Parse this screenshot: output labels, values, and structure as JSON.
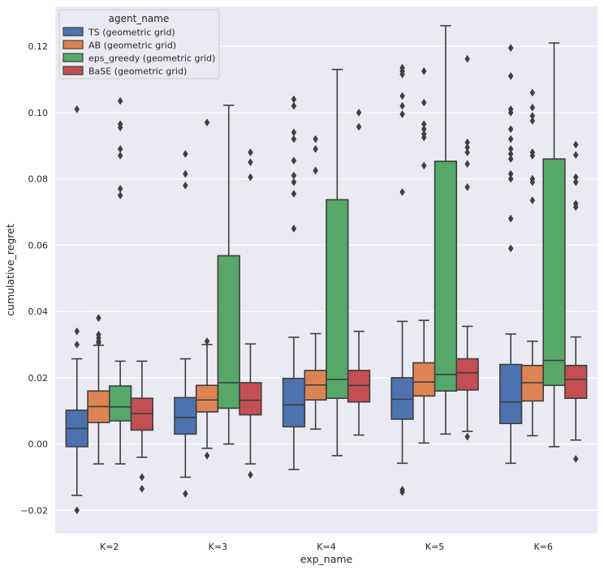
{
  "chart_data": {
    "type": "box",
    "xlabel": "exp_name",
    "ylabel": "cumulative_regret",
    "ylim": [
      -0.027,
      0.132
    ],
    "yticks": [
      -0.02,
      0.0,
      0.02,
      0.04,
      0.06,
      0.08,
      0.1,
      0.12
    ],
    "ytick_labels": [
      "−0.02",
      "0.00",
      "0.02",
      "0.04",
      "0.06",
      "0.08",
      "0.10",
      "0.12"
    ],
    "categories": [
      "K=2",
      "K=3",
      "K=4",
      "K=5",
      "K=6"
    ],
    "grid": true,
    "legend": {
      "title": "agent_name",
      "placement": "top-left"
    },
    "series": [
      {
        "name": "TS (geometric grid)",
        "color": "#4c72b0",
        "boxes": [
          {
            "whislo": -0.0155,
            "q1": -0.0008,
            "med": 0.0047,
            "q3": 0.0102,
            "whishi": 0.0257,
            "fliers": [
              0.101,
              0.034,
              0.03,
              -0.02
            ]
          },
          {
            "whislo": -0.01,
            "q1": 0.003,
            "med": 0.008,
            "q3": 0.014,
            "whishi": 0.0257,
            "fliers": [
              0.0875,
              0.0815,
              0.078,
              -0.015
            ]
          },
          {
            "whislo": -0.0077,
            "q1": 0.0052,
            "med": 0.0118,
            "q3": 0.0198,
            "whishi": 0.0322,
            "fliers": [
              0.104,
              0.102,
              0.094,
              0.092,
              0.0855,
              0.081,
              0.079,
              0.0755,
              0.065
            ]
          },
          {
            "whislo": -0.0058,
            "q1": 0.0075,
            "med": 0.0135,
            "q3": 0.02,
            "whishi": 0.037,
            "fliers": [
              0.1135,
              0.1125,
              0.1115,
              0.105,
              0.102,
              0.0995,
              0.076,
              -0.0138,
              -0.0145
            ]
          },
          {
            "whislo": -0.0058,
            "q1": 0.0062,
            "med": 0.0127,
            "q3": 0.024,
            "whishi": 0.0332,
            "fliers": [
              0.1195,
              0.111,
              0.101,
              0.1,
              0.095,
              0.092,
              0.089,
              0.0875,
              0.086,
              0.0815,
              0.08,
              0.068,
              0.059
            ]
          }
        ]
      },
      {
        "name": "AB (geometric grid)",
        "color": "#dd8452",
        "boxes": [
          {
            "whislo": -0.006,
            "q1": 0.0065,
            "med": 0.0113,
            "q3": 0.016,
            "whishi": 0.0298,
            "fliers": [
              0.038,
              0.033,
              0.032,
              0.031,
              0.0305
            ]
          },
          {
            "whislo": -0.0013,
            "q1": 0.0097,
            "med": 0.0133,
            "q3": 0.0177,
            "whishi": 0.03,
            "fliers": [
              0.097,
              0.031,
              -0.0035
            ]
          },
          {
            "whislo": 0.0045,
            "q1": 0.0133,
            "med": 0.0178,
            "q3": 0.0222,
            "whishi": 0.0333,
            "fliers": [
              0.092,
              0.089,
              0.0825
            ]
          },
          {
            "whislo": 0.0003,
            "q1": 0.0145,
            "med": 0.0187,
            "q3": 0.0245,
            "whishi": 0.0373,
            "fliers": [
              0.1125,
              0.103,
              0.0965,
              0.095,
              0.0935,
              0.0925,
              0.084
            ]
          },
          {
            "whislo": 0.0025,
            "q1": 0.013,
            "med": 0.0185,
            "q3": 0.0237,
            "whishi": 0.031,
            "fliers": [
              0.106,
              0.1015,
              0.099,
              0.0975,
              0.088,
              0.087,
              0.08,
              0.079,
              0.0735
            ]
          }
        ]
      },
      {
        "name": "eps_greedy (geometric grid)",
        "color": "#55a868",
        "boxes": [
          {
            "whislo": -0.006,
            "q1": 0.007,
            "med": 0.0112,
            "q3": 0.0175,
            "whishi": 0.025,
            "fliers": [
              0.1035,
              0.0965,
              0.0955,
              0.089,
              0.087,
              0.077,
              0.075
            ]
          },
          {
            "whislo": 0.0,
            "q1": 0.0108,
            "med": 0.0185,
            "q3": 0.0568,
            "whishi": 0.1022,
            "fliers": []
          },
          {
            "whislo": -0.0035,
            "q1": 0.0138,
            "med": 0.0195,
            "q3": 0.0737,
            "whishi": 0.113,
            "fliers": []
          },
          {
            "whislo": 0.003,
            "q1": 0.016,
            "med": 0.021,
            "q3": 0.0853,
            "whishi": 0.1262,
            "fliers": []
          },
          {
            "whislo": -0.0008,
            "q1": 0.0177,
            "med": 0.0252,
            "q3": 0.086,
            "whishi": 0.121,
            "fliers": []
          }
        ]
      },
      {
        "name": "BaSE (geometric grid)",
        "color": "#c44e52",
        "boxes": [
          {
            "whislo": -0.004,
            "q1": 0.0042,
            "med": 0.0092,
            "q3": 0.0138,
            "whishi": 0.025,
            "fliers": [
              -0.01,
              -0.0135
            ]
          },
          {
            "whislo": -0.006,
            "q1": 0.0088,
            "med": 0.0132,
            "q3": 0.0185,
            "whishi": 0.0302,
            "fliers": [
              0.088,
              0.085,
              0.0805,
              -0.0093
            ]
          },
          {
            "whislo": 0.0027,
            "q1": 0.0127,
            "med": 0.0177,
            "q3": 0.0222,
            "whishi": 0.034,
            "fliers": [
              0.1,
              0.0957
            ]
          },
          {
            "whislo": 0.0038,
            "q1": 0.0163,
            "med": 0.0215,
            "q3": 0.0257,
            "whishi": 0.0355,
            "fliers": [
              0.1162,
              0.091,
              0.0895,
              0.088,
              0.0845,
              0.0775,
              0.0022
            ]
          },
          {
            "whislo": 0.0012,
            "q1": 0.0138,
            "med": 0.0195,
            "q3": 0.0237,
            "whishi": 0.0323,
            "fliers": [
              0.0903,
              0.0872,
              0.0805,
              0.079,
              0.0725,
              0.0715,
              -0.0045
            ]
          }
        ]
      }
    ]
  }
}
